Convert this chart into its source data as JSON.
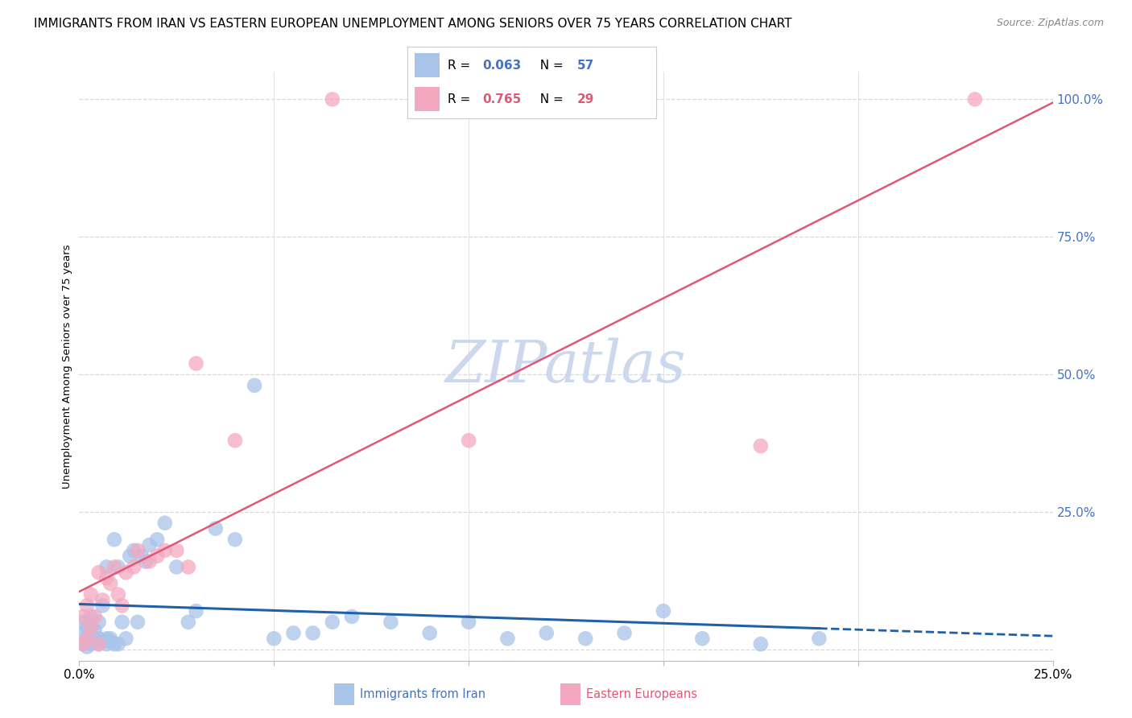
{
  "title": "IMMIGRANTS FROM IRAN VS EASTERN EUROPEAN UNEMPLOYMENT AMONG SENIORS OVER 75 YEARS CORRELATION CHART",
  "source": "Source: ZipAtlas.com",
  "ylabel": "Unemployment Among Seniors over 75 years",
  "watermark": "ZIPatlas",
  "legend": [
    {
      "label": "Immigrants from Iran",
      "color": "#a8c4e8",
      "line_color": "#2060a8",
      "R": "0.063",
      "N": "57"
    },
    {
      "label": "Eastern Europeans",
      "color": "#f4a8c0",
      "line_color": "#e05878",
      "R": "0.765",
      "N": "29"
    }
  ],
  "iran_scatter_x": [
    0.001,
    0.001,
    0.001,
    0.002,
    0.002,
    0.002,
    0.003,
    0.003,
    0.003,
    0.004,
    0.004,
    0.005,
    0.005,
    0.005,
    0.006,
    0.006,
    0.007,
    0.007,
    0.007,
    0.008,
    0.008,
    0.009,
    0.009,
    0.01,
    0.01,
    0.011,
    0.012,
    0.013,
    0.014,
    0.015,
    0.016,
    0.017,
    0.018,
    0.02,
    0.022,
    0.025,
    0.028,
    0.03,
    0.035,
    0.04,
    0.045,
    0.05,
    0.055,
    0.06,
    0.065,
    0.07,
    0.08,
    0.09,
    0.1,
    0.11,
    0.12,
    0.13,
    0.14,
    0.15,
    0.16,
    0.175,
    0.19
  ],
  "iran_scatter_y": [
    0.01,
    0.03,
    0.05,
    0.005,
    0.02,
    0.04,
    0.01,
    0.025,
    0.06,
    0.015,
    0.035,
    0.01,
    0.02,
    0.05,
    0.015,
    0.08,
    0.01,
    0.02,
    0.15,
    0.015,
    0.02,
    0.01,
    0.2,
    0.01,
    0.15,
    0.05,
    0.02,
    0.17,
    0.18,
    0.05,
    0.17,
    0.16,
    0.19,
    0.2,
    0.23,
    0.15,
    0.05,
    0.07,
    0.22,
    0.2,
    0.48,
    0.02,
    0.03,
    0.03,
    0.05,
    0.06,
    0.05,
    0.03,
    0.05,
    0.02,
    0.03,
    0.02,
    0.03,
    0.07,
    0.02,
    0.01,
    0.02
  ],
  "ee_scatter_x": [
    0.001,
    0.001,
    0.002,
    0.002,
    0.003,
    0.003,
    0.004,
    0.005,
    0.005,
    0.006,
    0.007,
    0.008,
    0.009,
    0.01,
    0.011,
    0.012,
    0.014,
    0.015,
    0.018,
    0.02,
    0.022,
    0.025,
    0.028,
    0.03,
    0.04,
    0.065,
    0.1,
    0.175,
    0.23
  ],
  "ee_scatter_y": [
    0.01,
    0.06,
    0.02,
    0.08,
    0.04,
    0.1,
    0.06,
    0.01,
    0.14,
    0.09,
    0.13,
    0.12,
    0.15,
    0.1,
    0.08,
    0.14,
    0.15,
    0.18,
    0.16,
    0.17,
    0.18,
    0.18,
    0.15,
    0.52,
    0.38,
    1.0,
    0.38,
    0.37,
    1.0
  ],
  "background_color": "#ffffff",
  "grid_color": "#d8d8d8",
  "title_fontsize": 11,
  "source_fontsize": 9,
  "ylabel_fontsize": 9.5,
  "watermark_color": "#ccd8ee",
  "watermark_fontsize": 52
}
